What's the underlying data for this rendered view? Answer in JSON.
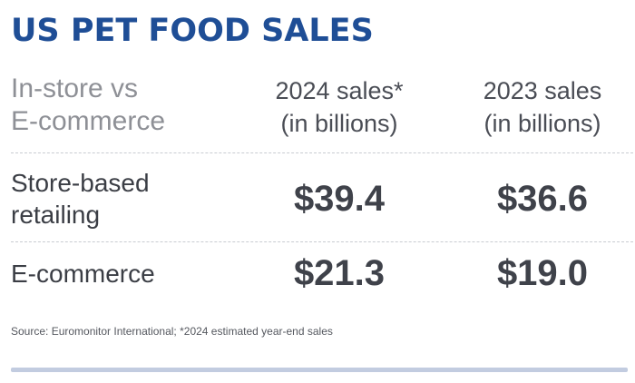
{
  "title": "US PET FOOD SALES",
  "colors": {
    "title": "#1f4e96",
    "text": "#3f424a",
    "muted": "#8e9096",
    "accent_bar": "#c2cce0"
  },
  "chart_data": {
    "type": "table",
    "title": "US PET FOOD SALES",
    "header": {
      "row_label_lines": [
        "In-store vs",
        "E-commerce"
      ],
      "columns": [
        {
          "lines": [
            "2024 sales*",
            "(in billions)"
          ]
        },
        {
          "lines": [
            "2023 sales",
            "(in billions)"
          ]
        }
      ]
    },
    "rows": [
      {
        "label_lines": [
          "Store-based",
          "retailing"
        ],
        "values": [
          "$39.4",
          "$36.6"
        ]
      },
      {
        "label_lines": [
          "E-commerce"
        ],
        "values": [
          "$21.3",
          "$19.0"
        ]
      }
    ],
    "footnote": "Source: Euromonitor International; *2024 estimated year-end sales"
  }
}
